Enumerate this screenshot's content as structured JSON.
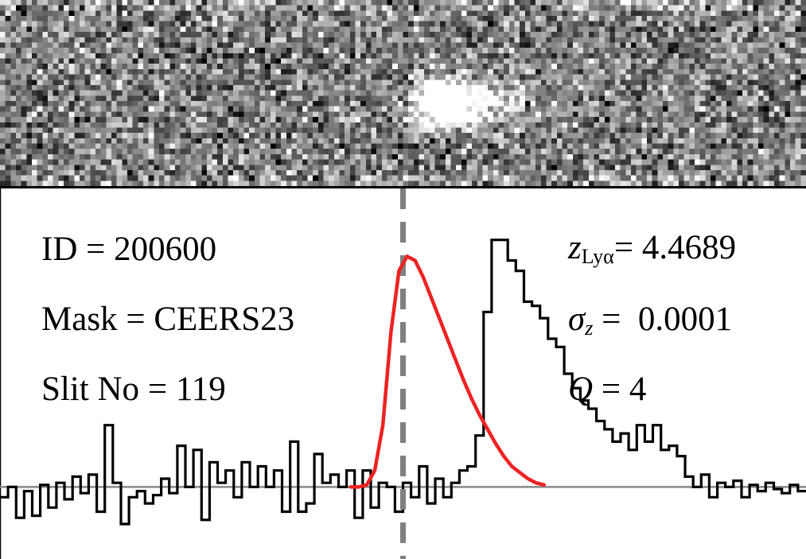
{
  "chart_data": {
    "type": "line",
    "panels": [
      "2d-spectrum",
      "1d-spectrum"
    ],
    "annotations_left": [
      {
        "key": "ID",
        "value": "200600"
      },
      {
        "key": "Mask",
        "value": "CEERS23"
      },
      {
        "key": "Slit No",
        "value": "119"
      }
    ],
    "annotations_right": {
      "z_symbol": "z",
      "z_subscript": "Lyα",
      "z_value": "4.4689",
      "sigma_symbol": "σ",
      "sigma_subscript": "z",
      "sigma_value": "0.0001",
      "q_symbol": "Q",
      "q_value": "4"
    },
    "x_range": [
      -1,
      1
    ],
    "y_range": [
      -0.35,
      1.45
    ],
    "line_center_x": 0,
    "continuum_level": 0,
    "series": [
      {
        "style": "step",
        "color": "#000000",
        "x": [
          -1.0,
          -0.98,
          -0.96,
          -0.94,
          -0.92,
          -0.9,
          -0.88,
          -0.86,
          -0.84,
          -0.82,
          -0.8,
          -0.78,
          -0.76,
          -0.74,
          -0.72,
          -0.7,
          -0.68,
          -0.66,
          -0.64,
          -0.62,
          -0.6,
          -0.58,
          -0.56,
          -0.54,
          -0.52,
          -0.5,
          -0.48,
          -0.46,
          -0.44,
          -0.42,
          -0.4,
          -0.38,
          -0.36,
          -0.34,
          -0.32,
          -0.3,
          -0.28,
          -0.26,
          -0.24,
          -0.22,
          -0.2,
          -0.18,
          -0.16,
          -0.14,
          -0.12,
          -0.1,
          -0.08,
          -0.06,
          -0.04,
          -0.02,
          0.0,
          0.02,
          0.04,
          0.06,
          0.08,
          0.1,
          0.12,
          0.14,
          0.16,
          0.18,
          0.2,
          0.22,
          0.24,
          0.26,
          0.28,
          0.3,
          0.32,
          0.34,
          0.36,
          0.38,
          0.4,
          0.42,
          0.44,
          0.46,
          0.48,
          0.5,
          0.52,
          0.54,
          0.56,
          0.58,
          0.6,
          0.62,
          0.64,
          0.66,
          0.68,
          0.7,
          0.72,
          0.74,
          0.76,
          0.78,
          0.8,
          0.82,
          0.84,
          0.86,
          0.88,
          0.9,
          0.92,
          0.94,
          0.96,
          0.98
        ],
        "y": [
          -0.05,
          0.0,
          -0.15,
          -0.02,
          -0.14,
          0.01,
          -0.1,
          0.02,
          -0.06,
          0.05,
          -0.03,
          0.06,
          -0.12,
          0.3,
          0.02,
          -0.18,
          -0.05,
          -0.02,
          -0.08,
          -0.04,
          0.04,
          -0.03,
          0.2,
          0.0,
          0.18,
          -0.16,
          0.12,
          0.02,
          0.08,
          -0.05,
          0.12,
          0.0,
          0.1,
          0.0,
          0.08,
          -0.12,
          0.22,
          -0.12,
          -0.08,
          0.16,
          0.02,
          0.06,
          0.0,
          0.08,
          -0.15,
          0.08,
          -0.1,
          0.02,
          0.0,
          -0.12,
          0.02,
          -0.05,
          0.1,
          -0.08,
          0.04,
          -0.05,
          0.02,
          0.08,
          0.1,
          0.25,
          0.85,
          1.2,
          1.2,
          1.1,
          1.05,
          0.9,
          0.88,
          0.82,
          0.72,
          0.68,
          0.55,
          0.48,
          0.42,
          0.38,
          0.32,
          0.28,
          0.22,
          0.26,
          0.18,
          0.3,
          0.22,
          0.3,
          0.18,
          0.2,
          0.15,
          0.05,
          0.0,
          0.06,
          -0.05,
          0.02,
          0.0,
          0.03,
          -0.05,
          0.01,
          -0.02,
          0.02,
          -0.01,
          -0.03,
          0.01,
          -0.02
        ]
      },
      {
        "style": "line",
        "color": "#888888",
        "x": [
          -1,
          1
        ],
        "y": [
          0,
          0
        ]
      },
      {
        "style": "fit",
        "color": "#ee2222",
        "x": [
          -0.13,
          -0.11,
          -0.09,
          -0.07,
          -0.05,
          -0.03,
          -0.01,
          0.01,
          0.03,
          0.05,
          0.07,
          0.09,
          0.11,
          0.13,
          0.15,
          0.17,
          0.19,
          0.21,
          0.23,
          0.25,
          0.27,
          0.29,
          0.31,
          0.33,
          0.35
        ],
        "y": [
          0.0,
          0.0,
          0.01,
          0.08,
          0.3,
          0.75,
          1.05,
          1.12,
          1.1,
          1.02,
          0.92,
          0.82,
          0.72,
          0.62,
          0.52,
          0.43,
          0.35,
          0.28,
          0.21,
          0.15,
          0.1,
          0.07,
          0.04,
          0.02,
          0.01
        ]
      }
    ],
    "grid": false,
    "legend": "none"
  }
}
